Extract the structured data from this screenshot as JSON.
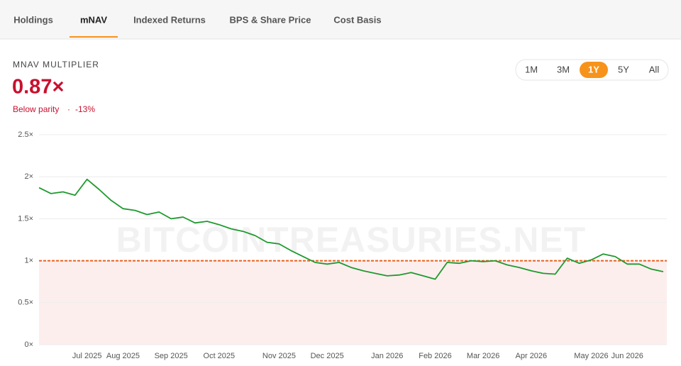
{
  "tabs": [
    "Holdings",
    "mNAV",
    "Indexed Returns",
    "BPS & Share Price",
    "Cost Basis"
  ],
  "active_tab": 1,
  "metric": {
    "label": "MNAV MULTIPLIER",
    "value": "0.87×",
    "status": "Below parity",
    "separator": "·",
    "change": "-13%"
  },
  "ranges": [
    "1M",
    "3M",
    "1Y",
    "5Y",
    "All"
  ],
  "active_range": 2,
  "chart_data": {
    "type": "line",
    "watermark": "BITCOINTREASURIES.NET",
    "categories": [
      null,
      null,
      null,
      null,
      "Jul 2025",
      null,
      null,
      "Aug 2025",
      null,
      null,
      null,
      "Sep 2025",
      null,
      null,
      null,
      "Oct 2025",
      null,
      null,
      null,
      null,
      "Nov 2025",
      null,
      null,
      null,
      "Dec 2025",
      null,
      null,
      null,
      null,
      "Jan 2026",
      null,
      null,
      null,
      "Feb 2026",
      null,
      null,
      null,
      "Mar 2026",
      null,
      null,
      null,
      "Apr 2026",
      null,
      null,
      null,
      null,
      "May 2026",
      null,
      null,
      "Jun 2026",
      null,
      null,
      null
    ],
    "series": [
      {
        "color": "#1e9a2e",
        "values": [
          1.87,
          1.8,
          1.82,
          1.78,
          1.97,
          1.85,
          1.72,
          1.62,
          1.6,
          1.55,
          1.58,
          1.5,
          1.52,
          1.45,
          1.47,
          1.43,
          1.38,
          1.35,
          1.3,
          1.22,
          1.2,
          1.12,
          1.05,
          0.98,
          0.96,
          0.98,
          0.92,
          0.88,
          0.85,
          0.82,
          0.83,
          0.86,
          0.82,
          0.78,
          0.98,
          0.97,
          1.0,
          0.99,
          1.0,
          0.95,
          0.92,
          0.88,
          0.85,
          0.84,
          1.03,
          0.97,
          1.01,
          1.08,
          1.05,
          0.96,
          0.96,
          0.9,
          0.87
        ]
      }
    ],
    "reference_line": {
      "value": 1,
      "color": "#e8601c",
      "fill": "#fdeeee"
    },
    "ylim": [
      0,
      2.5
    ],
    "yticks": [
      {
        "value": 0,
        "label": "0×"
      },
      {
        "value": 0.5,
        "label": "0.5×"
      },
      {
        "value": 1,
        "label": "1×"
      },
      {
        "value": 1.5,
        "label": "1.5×"
      },
      {
        "value": 2,
        "label": "2×"
      },
      {
        "value": 2.5,
        "label": "2.5×"
      }
    ],
    "grid": true
  }
}
